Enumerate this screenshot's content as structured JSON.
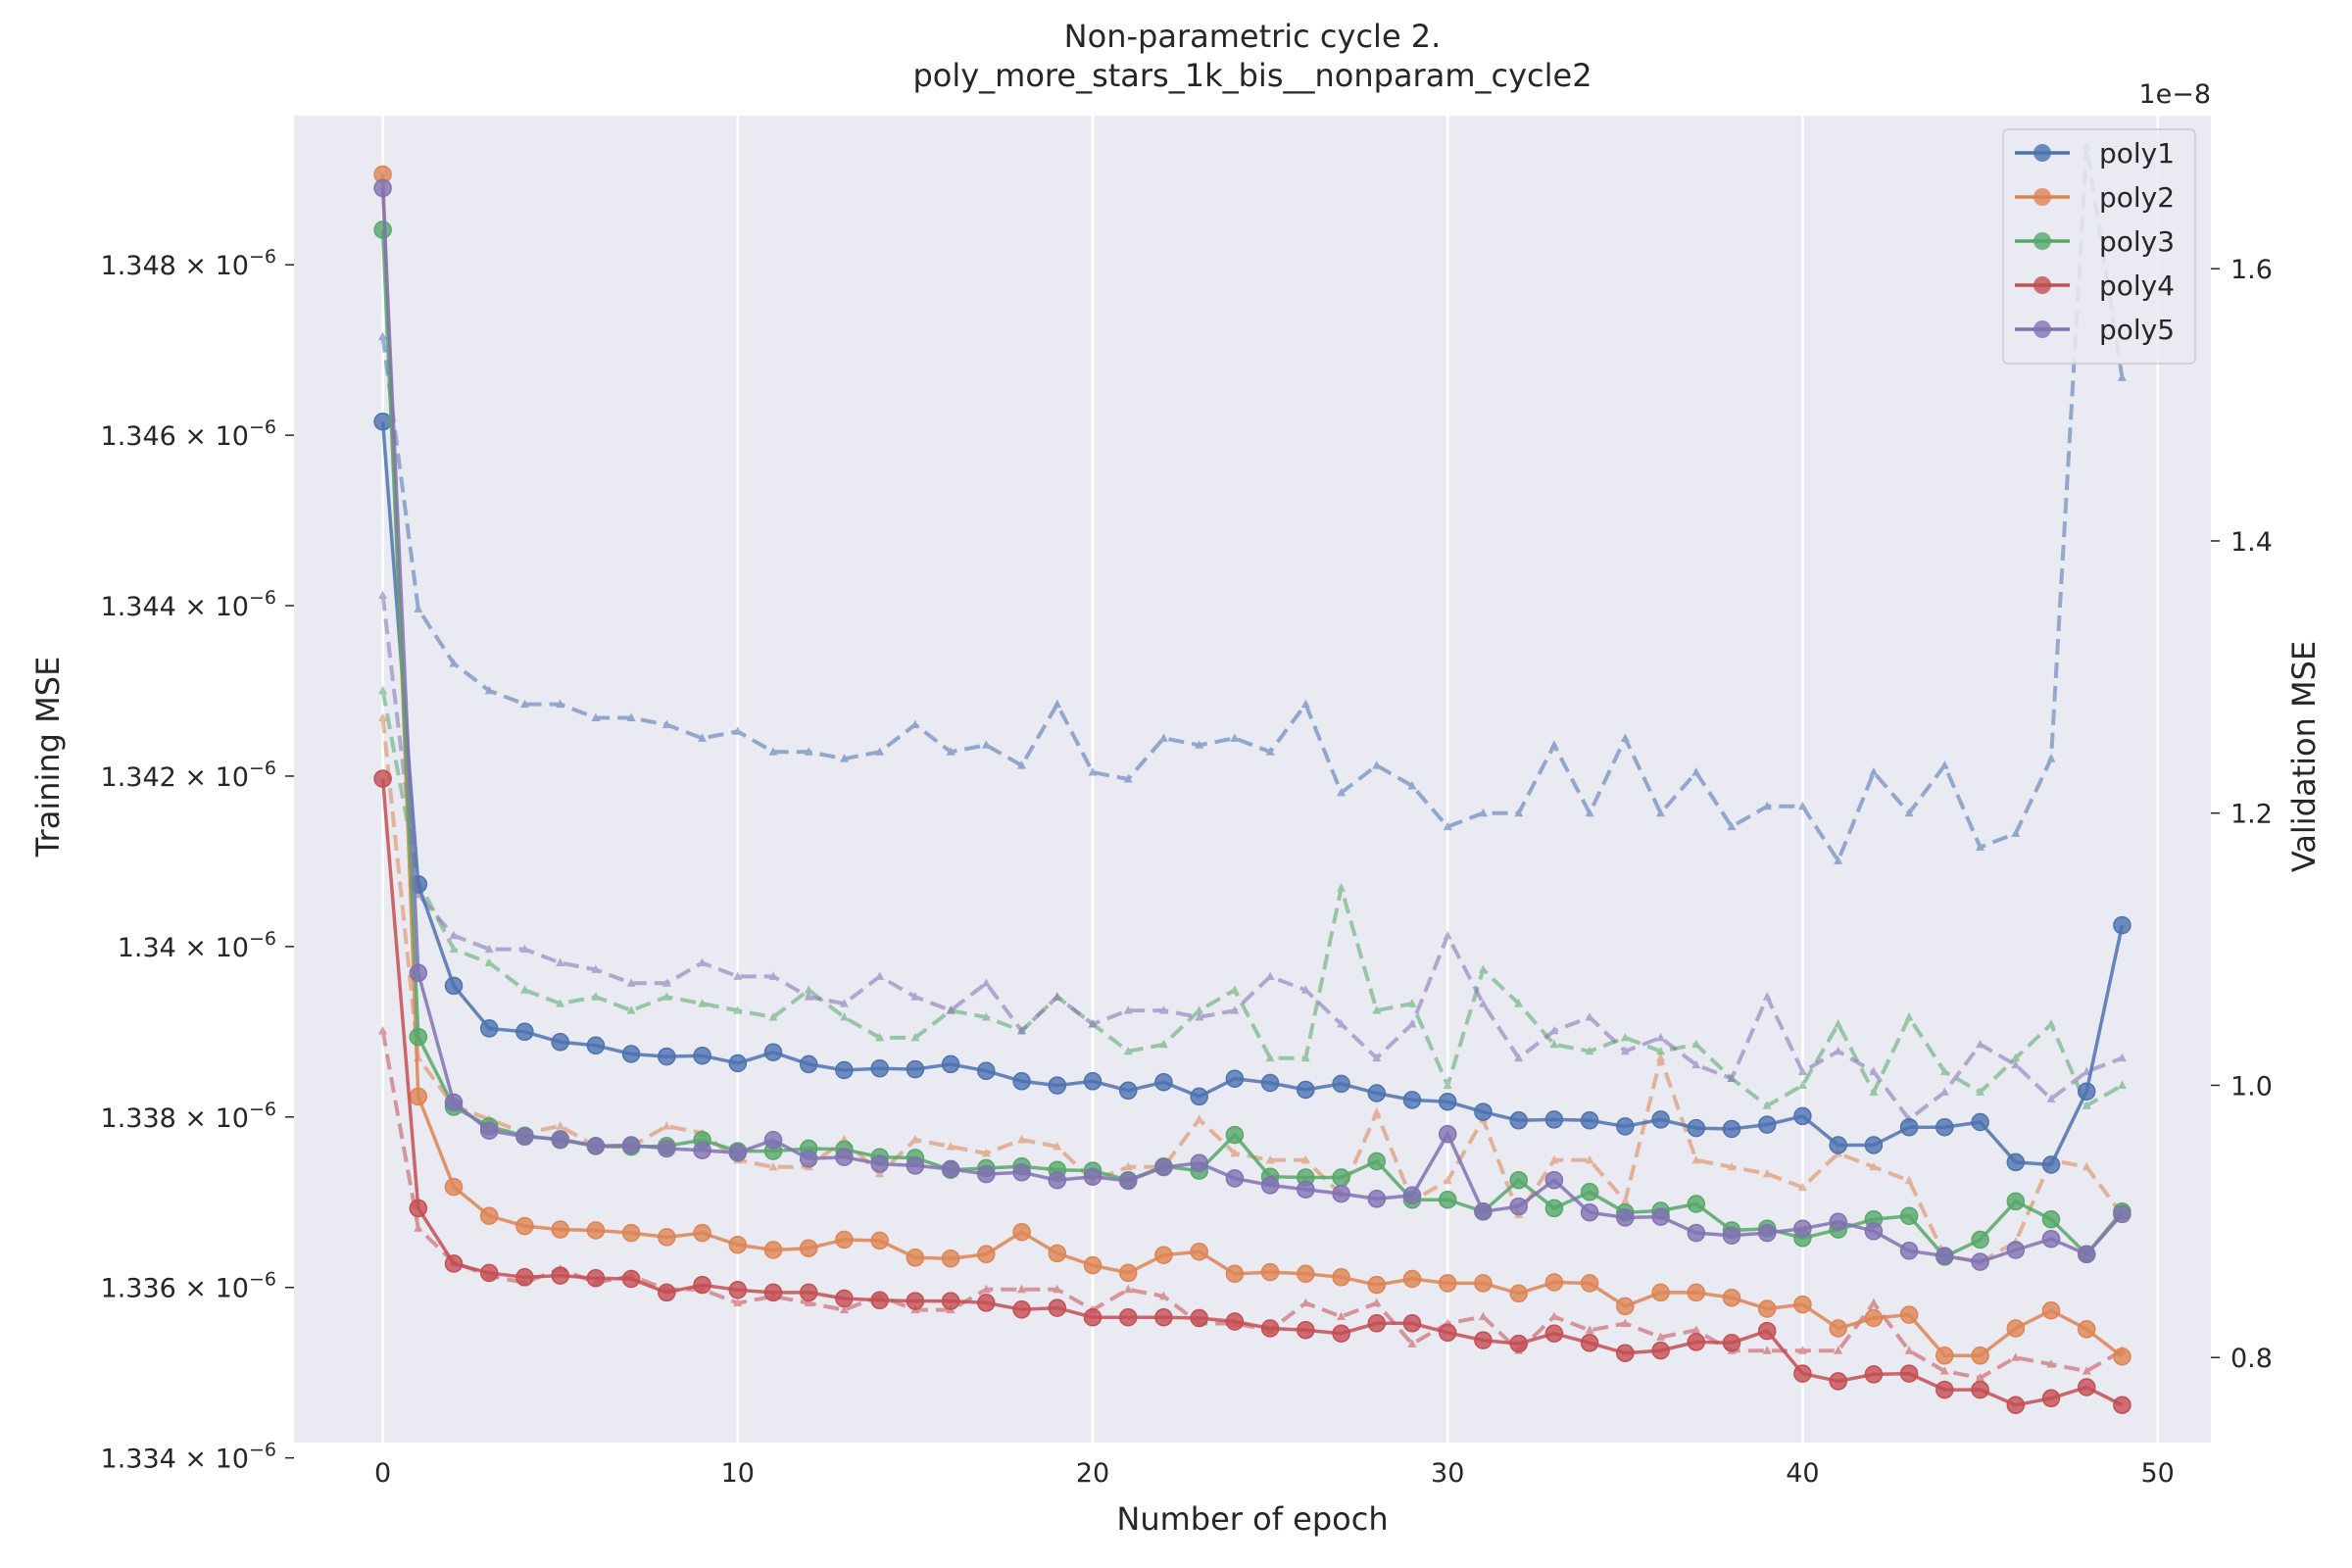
{
  "chart_data": {
    "type": "line",
    "title": "Non-parametric cycle 2.",
    "subtitle": "poly_more_stars_1k_bis__nonparam_cycle2",
    "xlabel": "Number of epoch",
    "ylabel": "Training MSE",
    "y2label": "Validation MSE",
    "y2_offset_text": "1e−8",
    "xlim": [
      -2.5,
      51.5
    ],
    "ylim": [
      1.33418e-06,
      1.34975e-06
    ],
    "y2lim": [
      0.7375,
      1.7125
    ],
    "x_ticks": [
      0,
      10,
      20,
      30,
      40,
      50
    ],
    "x_tick_labels": [
      "0",
      "10",
      "20",
      "30",
      "40",
      "50"
    ],
    "y_ticks": [
      1.334e-06,
      1.336e-06,
      1.338e-06,
      1.34e-06,
      1.342e-06,
      1.344e-06,
      1.346e-06,
      1.348e-06
    ],
    "y_tick_labels": [
      {
        "mant": "1.334",
        "base": "10",
        "exp": "−6"
      },
      {
        "mant": "1.336",
        "base": "10",
        "exp": "−6"
      },
      {
        "mant": "1.338",
        "base": "10",
        "exp": "−6"
      },
      {
        "mant": "1.34",
        "base": "10",
        "exp": "−6"
      },
      {
        "mant": "1.342",
        "base": "10",
        "exp": "−6"
      },
      {
        "mant": "1.344",
        "base": "10",
        "exp": "−6"
      },
      {
        "mant": "1.346",
        "base": "10",
        "exp": "−6"
      },
      {
        "mant": "1.348",
        "base": "10",
        "exp": "−6"
      }
    ],
    "y2_ticks": [
      0.8,
      1.0,
      1.2,
      1.4,
      1.6
    ],
    "y2_tick_labels": [
      "0.8",
      "1.0",
      "1.2",
      "1.4",
      "1.6"
    ],
    "grid": true,
    "legend_position": "top-right",
    "background_color": "#eaeaf2",
    "x": [
      0,
      1,
      2,
      3,
      4,
      5,
      6,
      7,
      8,
      9,
      10,
      11,
      12,
      13,
      14,
      15,
      16,
      17,
      18,
      19,
      20,
      21,
      22,
      23,
      24,
      25,
      26,
      27,
      28,
      29,
      30,
      31,
      32,
      33,
      34,
      35,
      36,
      37,
      38,
      39,
      40,
      41,
      42,
      43,
      44,
      45,
      46,
      47,
      48,
      49
    ],
    "series": [
      {
        "name": "poly1",
        "color": "#4c72b0",
        "train": [
          1.34616,
          1.34073,
          1.33954,
          1.33904,
          1.339,
          1.33888,
          1.33884,
          1.33874,
          1.33871,
          1.33872,
          1.33863,
          1.33876,
          1.33862,
          1.33855,
          1.33857,
          1.33856,
          1.33862,
          1.33854,
          1.33842,
          1.33837,
          1.33842,
          1.33831,
          1.33841,
          1.33824,
          1.33845,
          1.3384,
          1.33832,
          1.33839,
          1.33828,
          1.3382,
          1.33818,
          1.33806,
          1.33796,
          1.33797,
          1.33796,
          1.33789,
          1.33797,
          1.33787,
          1.33786,
          1.33791,
          1.33801,
          1.33767,
          1.33767,
          1.33788,
          1.33788,
          1.33794,
          1.33747,
          1.33744,
          1.3383,
          1.34025
        ],
        "val": [
          1.55,
          1.35,
          1.31,
          1.29,
          1.28,
          1.28,
          1.27,
          1.27,
          1.265,
          1.255,
          1.26,
          1.245,
          1.245,
          1.24,
          1.245,
          1.265,
          1.245,
          1.25,
          1.235,
          1.28,
          1.23,
          1.225,
          1.255,
          1.25,
          1.255,
          1.245,
          1.28,
          1.215,
          1.235,
          1.22,
          1.19,
          1.2,
          1.2,
          1.25,
          1.2,
          1.255,
          1.2,
          1.23,
          1.19,
          1.205,
          1.205,
          1.165,
          1.23,
          1.2,
          1.235,
          1.175,
          1.185,
          1.24,
          1.69,
          1.52
        ]
      },
      {
        "name": "poly2",
        "color": "#dd8452",
        "train": [
          1.34906,
          1.33824,
          1.33718,
          1.33684,
          1.33672,
          1.33668,
          1.33667,
          1.33664,
          1.33659,
          1.33664,
          1.3365,
          1.33644,
          1.33646,
          1.33656,
          1.33655,
          1.33635,
          1.33634,
          1.33639,
          1.33665,
          1.3364,
          1.33626,
          1.33617,
          1.33638,
          1.33642,
          1.33616,
          1.33618,
          1.33616,
          1.33612,
          1.33603,
          1.3361,
          1.33605,
          1.33605,
          1.33593,
          1.33606,
          1.33605,
          1.33578,
          1.33594,
          1.33594,
          1.33588,
          1.33575,
          1.3358,
          1.33552,
          1.33564,
          1.33568,
          1.3352,
          1.3352,
          1.33552,
          1.33573,
          1.33551,
          1.33519
        ],
        "val": [
          1.27,
          1.02,
          0.985,
          0.975,
          0.965,
          0.97,
          0.955,
          0.955,
          0.97,
          0.965,
          0.945,
          0.94,
          0.94,
          0.96,
          0.935,
          0.96,
          0.955,
          0.95,
          0.96,
          0.955,
          0.93,
          0.94,
          0.94,
          0.975,
          0.95,
          0.945,
          0.945,
          0.92,
          0.98,
          0.915,
          0.93,
          0.975,
          0.905,
          0.945,
          0.945,
          0.915,
          1.02,
          0.945,
          0.94,
          0.935,
          0.925,
          0.95,
          0.94,
          0.93,
          0.875,
          0.87,
          0.885,
          0.945,
          0.94,
          0.905
        ]
      },
      {
        "name": "poly3",
        "color": "#55a868",
        "train": [
          1.34841,
          1.33894,
          1.33812,
          1.33789,
          1.33778,
          1.33773,
          1.33766,
          1.33765,
          1.33766,
          1.33773,
          1.3376,
          1.3376,
          1.33763,
          1.33762,
          1.33753,
          1.33752,
          1.33738,
          1.3374,
          1.33742,
          1.33738,
          1.33737,
          1.33726,
          1.33742,
          1.33737,
          1.33779,
          1.3373,
          1.33729,
          1.33729,
          1.33748,
          1.33703,
          1.33703,
          1.33689,
          1.33726,
          1.33693,
          1.33712,
          1.33688,
          1.3369,
          1.33698,
          1.33667,
          1.33669,
          1.33658,
          1.33668,
          1.3368,
          1.33684,
          1.33636,
          1.33656,
          1.33701,
          1.3368,
          1.33639,
          1.33689
        ],
        "val": [
          1.29,
          1.15,
          1.1,
          1.09,
          1.07,
          1.06,
          1.065,
          1.055,
          1.065,
          1.06,
          1.055,
          1.05,
          1.07,
          1.05,
          1.035,
          1.035,
          1.055,
          1.05,
          1.04,
          1.065,
          1.045,
          1.025,
          1.03,
          1.055,
          1.07,
          1.02,
          1.02,
          1.145,
          1.055,
          1.06,
          1.0,
          1.085,
          1.06,
          1.03,
          1.025,
          1.035,
          1.025,
          1.03,
          1.005,
          0.985,
          1.0,
          1.045,
          0.995,
          1.05,
          1.01,
          0.995,
          1.02,
          1.045,
          0.985,
          1.0
        ]
      },
      {
        "name": "poly4",
        "color": "#c44e52",
        "train": [
          1.34197,
          1.33693,
          1.33628,
          1.33617,
          1.33612,
          1.33614,
          1.33611,
          1.3361,
          1.33594,
          1.33603,
          1.33597,
          1.33594,
          1.33594,
          1.33587,
          1.33585,
          1.33584,
          1.33584,
          1.33582,
          1.33574,
          1.33576,
          1.33565,
          1.33565,
          1.33565,
          1.33564,
          1.3356,
          1.33552,
          1.3355,
          1.33546,
          1.33558,
          1.33558,
          1.33547,
          1.33538,
          1.33534,
          1.33546,
          1.33535,
          1.33523,
          1.33526,
          1.33536,
          1.33535,
          1.33549,
          1.33499,
          1.3349,
          1.33498,
          1.33499,
          1.3348,
          1.3348,
          1.33462,
          1.3347,
          1.33483,
          1.33462
        ],
        "val": [
          1.04,
          0.895,
          0.87,
          0.86,
          0.855,
          0.865,
          0.855,
          0.86,
          0.85,
          0.85,
          0.84,
          0.845,
          0.84,
          0.835,
          0.845,
          0.835,
          0.835,
          0.85,
          0.85,
          0.85,
          0.835,
          0.85,
          0.845,
          0.825,
          0.825,
          0.82,
          0.84,
          0.83,
          0.84,
          0.81,
          0.825,
          0.83,
          0.805,
          0.83,
          0.82,
          0.825,
          0.815,
          0.82,
          0.805,
          0.805,
          0.805,
          0.805,
          0.84,
          0.805,
          0.79,
          0.785,
          0.8,
          0.795,
          0.79,
          0.805
        ]
      },
      {
        "name": "poly5",
        "color": "#8172b3",
        "train": [
          1.3489,
          1.33969,
          1.33817,
          1.33784,
          1.33777,
          1.33774,
          1.33766,
          1.33767,
          1.33763,
          1.33761,
          1.33758,
          1.33773,
          1.33751,
          1.33753,
          1.33745,
          1.33743,
          1.33739,
          1.33733,
          1.33735,
          1.33726,
          1.3373,
          1.33725,
          1.33741,
          1.33746,
          1.33728,
          1.3372,
          1.33715,
          1.3371,
          1.33704,
          1.33708,
          1.3378,
          1.33689,
          1.33695,
          1.33726,
          1.33688,
          1.33682,
          1.33683,
          1.33664,
          1.33661,
          1.33664,
          1.33669,
          1.33677,
          1.33666,
          1.33643,
          1.33637,
          1.3363,
          1.33644,
          1.33657,
          1.33639,
          1.33686
        ],
        "val": [
          1.36,
          1.14,
          1.11,
          1.1,
          1.1,
          1.09,
          1.085,
          1.075,
          1.075,
          1.09,
          1.08,
          1.08,
          1.065,
          1.06,
          1.08,
          1.065,
          1.055,
          1.075,
          1.04,
          1.065,
          1.045,
          1.055,
          1.055,
          1.05,
          1.055,
          1.08,
          1.07,
          1.045,
          1.02,
          1.045,
          1.11,
          1.06,
          1.02,
          1.04,
          1.05,
          1.025,
          1.035,
          1.015,
          1.005,
          1.065,
          1.01,
          1.025,
          1.01,
          0.975,
          0.995,
          1.03,
          1.015,
          0.99,
          1.01,
          1.02
        ]
      }
    ]
  }
}
